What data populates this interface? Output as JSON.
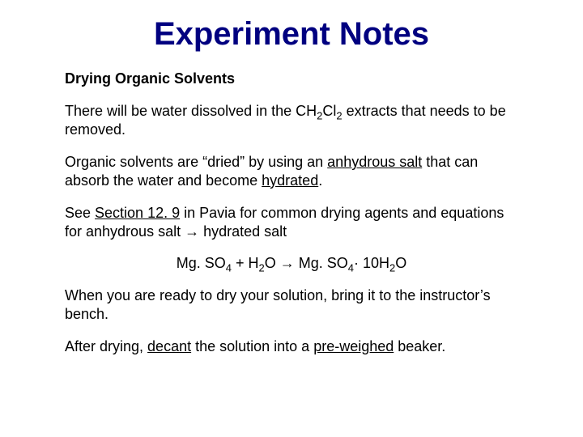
{
  "colors": {
    "title_color": "#000080",
    "body_color": "#000000",
    "background": "#ffffff"
  },
  "typography": {
    "title_font_family": "Comic Sans MS",
    "title_fontsize_pt": 30,
    "title_weight": "bold",
    "body_font_family": "Arial",
    "body_fontsize_pt": 14,
    "subtitle_fontsize_pt": 14,
    "subtitle_weight": "bold"
  },
  "title": "Experiment Notes",
  "subtitle": "Drying Organic Solvents",
  "p1_a": "There will be water dissolved in the CH",
  "p1_sub1": "2",
  "p1_b": "Cl",
  "p1_sub2": "2",
  "p1_c": " extracts that needs to be removed.",
  "p2_a": "Organic solvents are “dried” by using an ",
  "p2_u1": "anhydrous salt",
  "p2_b": " that can absorb the water and become ",
  "p2_u2": "hydrated",
  "p2_c": ".",
  "p3_a": "See ",
  "p3_u1": "Section 12. 9",
  "p3_b": " in Pavia for common drying agents and equations for anhydrous salt → hydrated salt",
  "eq_a": "Mg. SO",
  "eq_sub1": "4",
  "eq_b": "  +  H",
  "eq_sub2": "2",
  "eq_c": "O   →   Mg. SO",
  "eq_sub3": "4",
  "eq_d": "· 10H",
  "eq_sub4": "2",
  "eq_e": "O",
  "p4": "When you are ready to dry your solution, bring it to the instructor’s bench.",
  "p5_a": "After drying, ",
  "p5_u1": "decant",
  "p5_b": " the solution into a ",
  "p5_u2": "pre-weighed",
  "p5_c": " beaker."
}
